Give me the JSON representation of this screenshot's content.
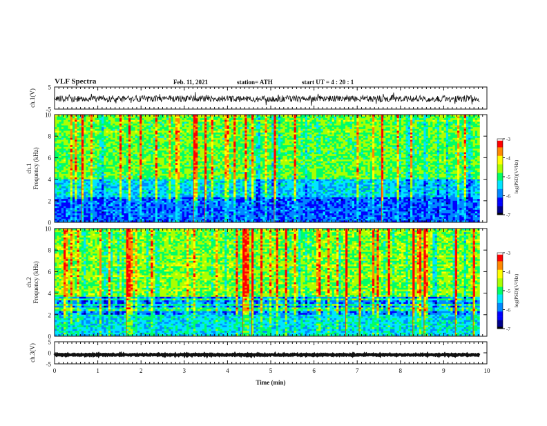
{
  "header": {
    "title": "VLF Spectra",
    "date": "Feb. 11, 2021",
    "station": "station= ATH",
    "start": "start  UT =   4 : 20 : 1"
  },
  "colors": {
    "background": "#ffffff",
    "axis": "#111111",
    "colormap": [
      "#000000",
      "#00008b",
      "#0000ff",
      "#0088ff",
      "#00e5ff",
      "#00ff66",
      "#aaff00",
      "#ffff00",
      "#ff8800",
      "#ff0000",
      "#ffffff"
    ]
  },
  "chart_data": [
    {
      "type": "line",
      "name": "ch1-waveform",
      "ylabel": "ch.1(V)",
      "ylim": [
        -5,
        5
      ],
      "yticks": [
        -5,
        5
      ],
      "x_range_min": [
        0,
        9.83
      ],
      "baseline": -0.3,
      "amplitude": 1.5
    },
    {
      "type": "heatmap",
      "name": "ch1-spectrogram",
      "ylabel": "ch.1\nFrequency (kHz)",
      "ylim": [
        0,
        10
      ],
      "yticks": [
        0,
        2,
        4,
        6,
        8,
        10
      ],
      "x_range_min": [
        0,
        9.83
      ],
      "colorbar": {
        "label": "log(PSD)(V²/Hz)",
        "range": [
          -7,
          -3
        ],
        "ticks": [
          -3,
          -4,
          -5,
          -6,
          -7
        ]
      },
      "bands": [
        {
          "f_min_khz": 0,
          "f_max_khz": 2.3,
          "log_psd": -6.0,
          "note": "dark blue low band with green line pattern"
        },
        {
          "f_min_khz": 2.3,
          "f_max_khz": 4.0,
          "log_psd": -5.5,
          "note": "blue/cyan"
        },
        {
          "f_min_khz": 4.0,
          "f_max_khz": 10.0,
          "log_psd": -4.8,
          "note": "green/yellow broadband with red vertical sferics"
        }
      ]
    },
    {
      "type": "heatmap",
      "name": "ch2-spectrogram",
      "ylabel": "ch.2\nFrequency (kHz)",
      "ylim": [
        0,
        10
      ],
      "yticks": [
        0,
        2,
        4,
        6,
        8,
        10
      ],
      "x_range_min": [
        0,
        9.83
      ],
      "colorbar": {
        "label": "log(PSD)(V²/Hz)",
        "range": [
          -7,
          -3
        ],
        "ticks": [
          -3,
          -4,
          -5,
          -6,
          -7
        ]
      },
      "bands": [
        {
          "f_min_khz": 0,
          "f_max_khz": 2.0,
          "log_psd": -5.4,
          "note": "cyan/green low band"
        },
        {
          "f_min_khz": 2.0,
          "f_max_khz": 3.7,
          "log_psd": -5.8,
          "note": "blue"
        },
        {
          "f_min_khz": 3.7,
          "f_max_khz": 10.0,
          "log_psd": -4.7,
          "note": "green/yellow with vertical sferics"
        }
      ]
    },
    {
      "type": "line",
      "name": "ch3-waveform",
      "ylabel": "ch.3(V)",
      "ylim": [
        -5,
        5
      ],
      "yticks": [
        -5,
        0,
        5
      ],
      "x_range_min": [
        0,
        9.83
      ],
      "baseline": -0.9,
      "amplitude": 0.25
    }
  ],
  "xaxis": {
    "label": "Time  (min)",
    "ticks": [
      0,
      1,
      2,
      3,
      4,
      5,
      6,
      7,
      8,
      9,
      10
    ],
    "tick_labels": [
      "0",
      "1",
      "2",
      "3",
      "4",
      "5",
      "6",
      "7",
      "8",
      "9",
      "10"
    ],
    "range": [
      0,
      10
    ]
  }
}
